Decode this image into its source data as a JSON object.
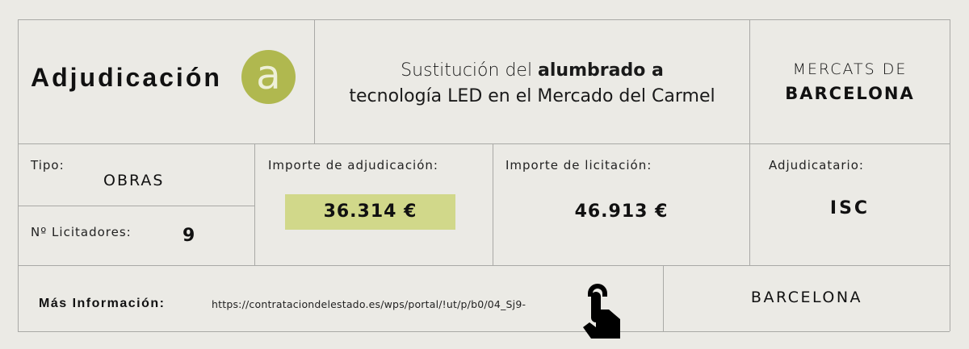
{
  "header": {
    "heading": "Adjudicación",
    "logo_letter": "a",
    "title_regular_1": "Sustitución del ",
    "title_bold": "alumbrado a",
    "title_line2": "tecnología LED en el Mercado del Carmel",
    "org_line1": "MERCATS DE",
    "org_line2": "BARCELONA"
  },
  "details": {
    "tipo_label": "Tipo:",
    "tipo_value": "OBRAS",
    "licitadores_label": "Nº Licitadores:",
    "licitadores_value": "9",
    "importe_adj_label": "Importe de adjudicación:",
    "importe_adj_value": "36.314 €",
    "importe_lic_label": "Importe de licitación:",
    "importe_lic_value": "46.913 €",
    "adjudicatario_label": "Adjudicatario:",
    "adjudicatario_value": "ISC"
  },
  "footer": {
    "mas_info_label": "Más Información:",
    "url": "https://contrataciondelestado.es/wps/portal/!ut/p/b0/04_Sj9-",
    "location": "BARCELONA"
  },
  "colors": {
    "accent": "#b0b84f",
    "highlight": "#d1d88a",
    "background": "#ebeae5"
  }
}
